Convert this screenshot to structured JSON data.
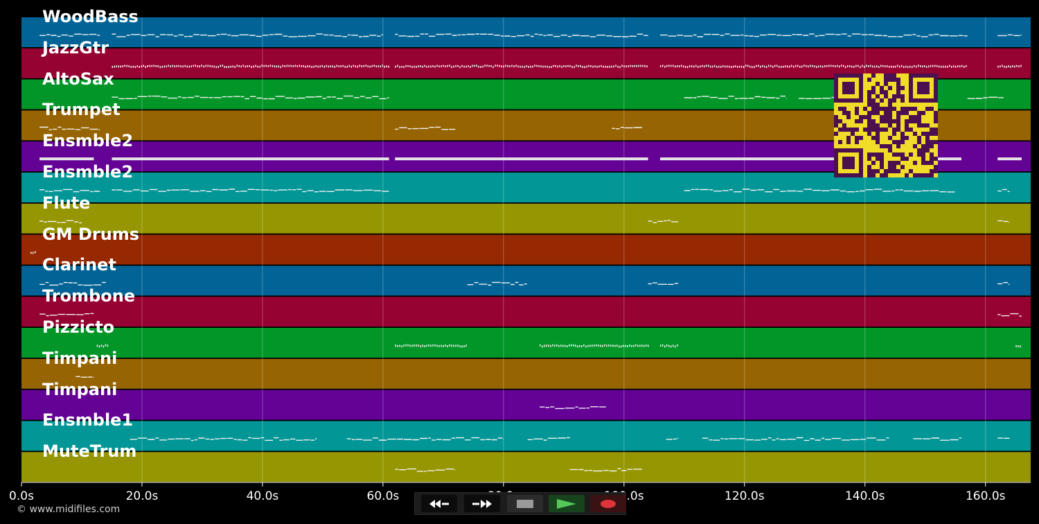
{
  "chart_data": {
    "type": "piano-roll",
    "x_unit": "s",
    "xlim": [
      0,
      167.5
    ],
    "x_ticks": [
      0,
      20,
      40,
      60,
      80,
      100,
      120,
      140,
      160
    ],
    "x_tick_labels": [
      "0.0s",
      "20.0s",
      "40.0s",
      "60.0s",
      "80.0s",
      "100.0s",
      "120.0s",
      "140.0s",
      "160.0s"
    ],
    "grid": true,
    "tracks": [
      {
        "name": "WoodBass",
        "color": "#026496",
        "segments": [
          [
            3,
            13
          ],
          [
            15,
            60
          ],
          [
            62,
            104
          ],
          [
            106,
            157
          ],
          [
            162,
            166
          ]
        ],
        "texture": "line"
      },
      {
        "name": "JazzGtr",
        "color": "#960232",
        "segments": [
          [
            15,
            61
          ],
          [
            62,
            104
          ],
          [
            106,
            157
          ],
          [
            162,
            166
          ]
        ],
        "texture": "dots"
      },
      {
        "name": "AltoSax",
        "color": "#029628",
        "segments": [
          [
            15,
            61
          ],
          [
            110,
            127
          ],
          [
            129,
            150
          ],
          [
            157,
            163
          ]
        ],
        "texture": "line"
      },
      {
        "name": "Trumpet",
        "color": "#966402",
        "segments": [
          [
            3,
            13
          ],
          [
            62,
            72
          ],
          [
            98,
            103
          ]
        ],
        "texture": "line"
      },
      {
        "name": "Ensmble2",
        "color": "#640296",
        "segments": [
          [
            3,
            12
          ],
          [
            15,
            61
          ],
          [
            62,
            104
          ],
          [
            106,
            156
          ],
          [
            162,
            166
          ]
        ],
        "texture": "bar"
      },
      {
        "name": "Ensmble2",
        "color": "#029696",
        "segments": [
          [
            3,
            13
          ],
          [
            15,
            61
          ],
          [
            110,
            155
          ],
          [
            162,
            164
          ]
        ],
        "texture": "line"
      },
      {
        "name": "Flute",
        "color": "#969602",
        "segments": [
          [
            3,
            10
          ],
          [
            104,
            109
          ],
          [
            162,
            164
          ]
        ],
        "texture": "line"
      },
      {
        "name": "GM Drums",
        "color": "#962802",
        "segments": [
          [
            1.5,
            2.5
          ]
        ],
        "texture": "dots"
      },
      {
        "name": "Clarinet",
        "color": "#026496",
        "segments": [
          [
            3,
            14
          ],
          [
            74,
            84
          ],
          [
            104,
            109
          ],
          [
            162,
            164
          ]
        ],
        "texture": "line"
      },
      {
        "name": "Trombone",
        "color": "#960232",
        "segments": [
          [
            3,
            12
          ],
          [
            162,
            166
          ]
        ],
        "texture": "line"
      },
      {
        "name": "Pizzicto",
        "color": "#029628",
        "segments": [
          [
            12.5,
            14.5
          ],
          [
            62,
            74
          ],
          [
            86,
            104
          ],
          [
            106,
            109
          ],
          [
            165,
            166
          ]
        ],
        "texture": "dots"
      },
      {
        "name": "Timpani",
        "color": "#966402",
        "segments": [
          [
            9,
            12
          ]
        ],
        "texture": "line"
      },
      {
        "name": "Timpani",
        "color": "#640296",
        "segments": [
          [
            86,
            97
          ]
        ],
        "texture": "line"
      },
      {
        "name": "Ensmble1",
        "color": "#029696",
        "segments": [
          [
            18,
            49
          ],
          [
            54,
            80
          ],
          [
            84,
            91
          ],
          [
            107,
            109
          ],
          [
            113,
            144
          ],
          [
            148,
            156
          ],
          [
            162,
            164
          ]
        ],
        "texture": "line"
      },
      {
        "name": "MuteTrum",
        "color": "#969602",
        "segments": [
          [
            62,
            72
          ],
          [
            91,
            103
          ]
        ],
        "texture": "line"
      }
    ]
  },
  "footer": {
    "copyright": "© www.midifiles.com"
  },
  "transport": {
    "rewind_icon": "rewind-icon",
    "forward_icon": "fast-forward-icon",
    "stop_icon": "stop-icon",
    "play_icon": "play-icon",
    "record_icon": "record-icon"
  }
}
